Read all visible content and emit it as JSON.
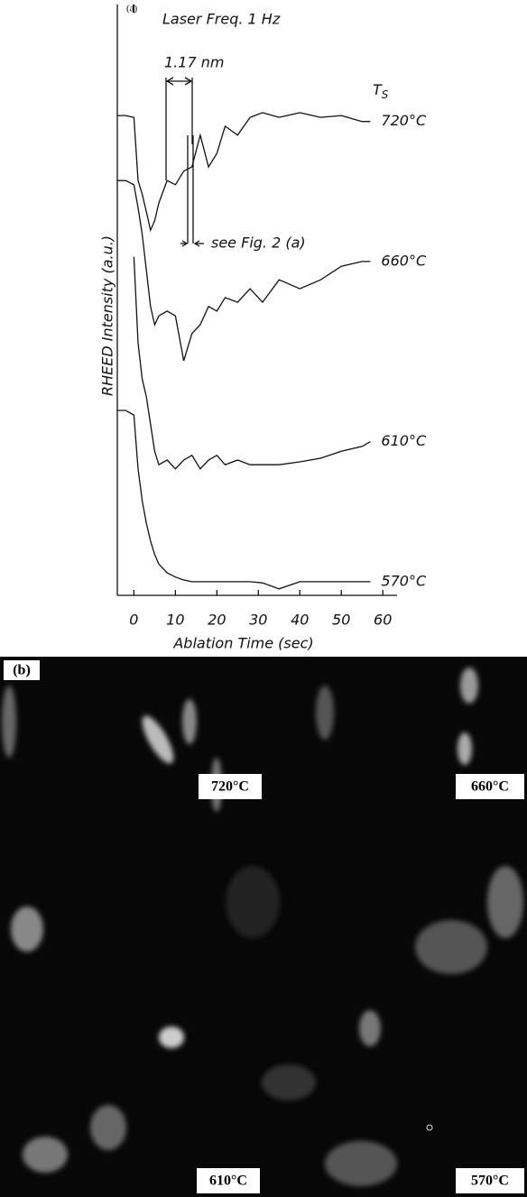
{
  "chart_data": {
    "type": "line",
    "panel_label": "(a)",
    "x_label": "Ablation Time (sec)",
    "y_label": "RHEED Intensity (a.u.)",
    "annotations": {
      "laser": "Laser Freq. 1 Hz",
      "period": "1.17 nm",
      "ts_base": "T",
      "ts_sub": "S",
      "reference": "see Fig. 2 (a)"
    },
    "x": [
      -4,
      -2,
      0,
      1,
      2,
      3,
      4,
      5,
      6,
      8,
      10,
      12,
      14,
      16,
      18,
      20,
      22,
      25,
      28,
      31,
      35,
      40,
      45,
      50,
      55,
      57
    ],
    "xlim": [
      -4,
      63
    ],
    "xticks": [
      0,
      10,
      20,
      30,
      40,
      50,
      60
    ],
    "ylim": [
      0,
      100
    ],
    "series": [
      {
        "name": "720°C",
        "color": "#111111",
        "values": [
          81.2,
          81.2,
          80.9,
          70.2,
          67.9,
          64.9,
          61.8,
          63.4,
          66.4,
          70.2,
          69.5,
          71.8,
          72.5,
          77.9,
          72.5,
          74.8,
          79.4,
          77.9,
          80.9,
          81.7,
          80.9,
          81.7,
          80.9,
          81.2,
          80.2,
          80.2
        ]
      },
      {
        "name": "660°C",
        "color": "#111111",
        "values": [
          70.2,
          70.2,
          69.5,
          65.6,
          61.1,
          55.0,
          48.9,
          45.8,
          47.3,
          48.1,
          47.3,
          39.7,
          44.3,
          45.8,
          48.9,
          48.1,
          50.4,
          49.6,
          51.9,
          49.6,
          53.4,
          51.9,
          53.4,
          55.7,
          56.5,
          56.5
        ]
      },
      {
        "name": "610°C",
        "color": "#111111",
        "values": [
          null,
          null,
          57.3,
          42.7,
          36.6,
          33.6,
          29.0,
          24.4,
          22.1,
          22.9,
          21.4,
          22.9,
          23.7,
          21.4,
          22.9,
          23.7,
          22.1,
          22.9,
          22.1,
          22.1,
          22.1,
          22.6,
          23.2,
          24.4,
          25.2,
          26.0
        ]
      },
      {
        "name": "570°C",
        "color": "#111111",
        "values": [
          31.3,
          31.3,
          30.5,
          21.4,
          16.0,
          12.2,
          9.2,
          6.9,
          5.3,
          3.8,
          3.1,
          2.6,
          2.3,
          2.3,
          2.3,
          2.3,
          2.3,
          2.3,
          2.3,
          2.1,
          1.1,
          2.3,
          2.3,
          2.3,
          2.3,
          2.3
        ]
      }
    ]
  },
  "micrograph": {
    "panel_label": "(b)",
    "labels": [
      "720°C",
      "660°C",
      "610°C",
      "570°C"
    ]
  }
}
